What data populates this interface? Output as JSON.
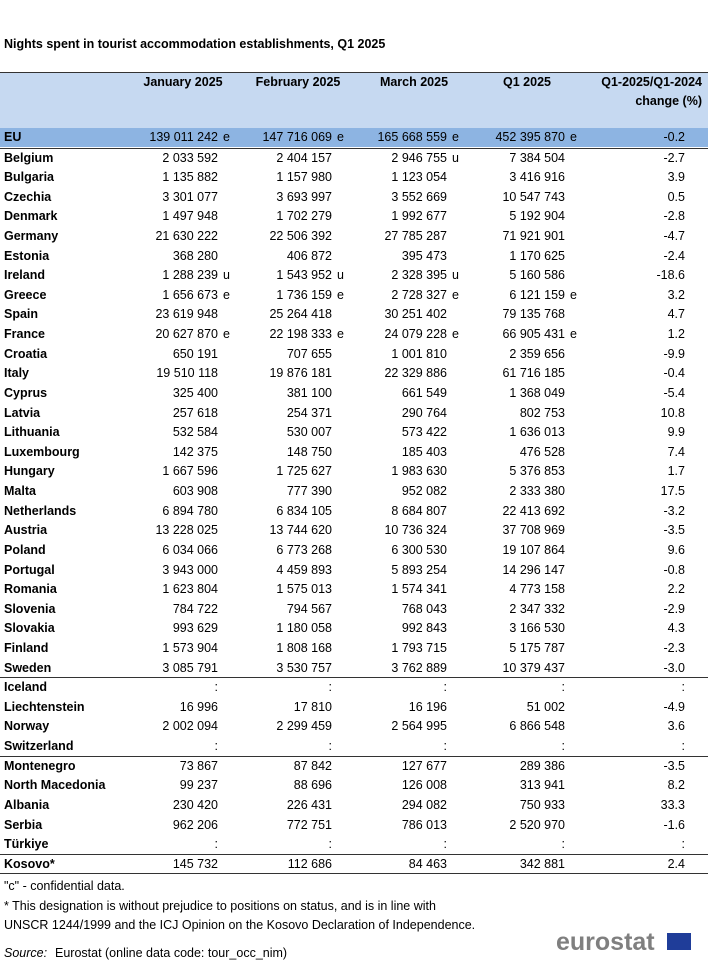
{
  "title": "Nights spent in tourist accommodation establishments, Q1 2025",
  "table": {
    "header": [
      "January 2025",
      "February 2025",
      "March 2025",
      "Q1 2025",
      [
        "Q1-2025/Q1-2024",
        "change  (%)"
      ]
    ],
    "groups": [
      [
        {
          "label": "EU",
          "cells": [
            [
              "139 011 242",
              "e"
            ],
            [
              "147 716 069",
              "e"
            ],
            [
              "165 668 559",
              "e"
            ],
            [
              "452 395 870",
              "e"
            ],
            "-0.2"
          ]
        }
      ],
      [
        {
          "label": "Belgium",
          "cells": [
            "2 033 592",
            "2 404 157",
            [
              "2 946 755",
              "u"
            ],
            "7 384 504",
            "-2.7"
          ]
        },
        {
          "label": "Bulgaria",
          "cells": [
            "1 135 882",
            "1 157 980",
            "1 123 054",
            "3 416 916",
            "3.9"
          ]
        },
        {
          "label": "Czechia",
          "cells": [
            "3 301 077",
            "3 693 997",
            "3 552 669",
            "10 547 743",
            "0.5"
          ]
        },
        {
          "label": "Denmark",
          "cells": [
            "1 497 948",
            "1 702 279",
            "1 992 677",
            "5 192 904",
            "-2.8"
          ]
        },
        {
          "label": "Germany",
          "cells": [
            "21 630 222",
            "22 506 392",
            "27 785 287",
            "71 921 901",
            "-4.7"
          ]
        },
        {
          "label": "Estonia",
          "cells": [
            "368 280",
            "406 872",
            "395 473",
            "1 170 625",
            "-2.4"
          ]
        },
        {
          "label": "Ireland",
          "cells": [
            [
              "1 288 239",
              "u"
            ],
            [
              "1 543 952",
              "u"
            ],
            [
              "2 328 395",
              "u"
            ],
            "5 160 586",
            "-18.6"
          ]
        },
        {
          "label": "Greece",
          "cells": [
            [
              "1 656 673",
              "e"
            ],
            [
              "1 736 159",
              "e"
            ],
            [
              "2 728 327",
              "e"
            ],
            [
              "6 121 159",
              "e"
            ],
            "3.2"
          ]
        },
        {
          "label": "Spain",
          "cells": [
            "23 619 948",
            "25 264 418",
            "30 251 402",
            "79 135 768",
            "4.7"
          ]
        },
        {
          "label": "France",
          "cells": [
            [
              "20 627 870",
              "e"
            ],
            [
              "22 198 333",
              "e"
            ],
            [
              "24 079 228",
              "e"
            ],
            [
              "66 905 431",
              "e"
            ],
            "1.2"
          ]
        },
        {
          "label": "Croatia",
          "cells": [
            "650 191",
            "707 655",
            "1 001 810",
            "2 359 656",
            "-9.9"
          ]
        },
        {
          "label": "Italy",
          "cells": [
            "19 510 118",
            "19 876 181",
            "22 329 886",
            "61 716 185",
            "-0.4"
          ]
        },
        {
          "label": "Cyprus",
          "cells": [
            "325 400",
            "381 100",
            "661 549",
            "1 368 049",
            "-5.4"
          ]
        },
        {
          "label": "Latvia",
          "cells": [
            "257 618",
            "254 371",
            "290 764",
            "802 753",
            "10.8"
          ]
        },
        {
          "label": "Lithuania",
          "cells": [
            "532 584",
            "530 007",
            "573 422",
            "1 636 013",
            "9.9"
          ]
        },
        {
          "label": "Luxembourg",
          "cells": [
            "142 375",
            "148 750",
            "185 403",
            "476 528",
            "7.4"
          ]
        },
        {
          "label": "Hungary",
          "cells": [
            "1 667 596",
            "1 725 627",
            "1 983 630",
            "5 376 853",
            "1.7"
          ]
        },
        {
          "label": "Malta",
          "cells": [
            "603 908",
            "777 390",
            "952 082",
            "2 333 380",
            "17.5"
          ]
        },
        {
          "label": "Netherlands",
          "cells": [
            "6 894 780",
            "6 834 105",
            "8 684 807",
            "22 413 692",
            "-3.2"
          ]
        },
        {
          "label": "Austria",
          "cells": [
            "13 228 025",
            "13 744 620",
            "10 736 324",
            "37 708 969",
            "-3.5"
          ]
        },
        {
          "label": "Poland",
          "cells": [
            "6 034 066",
            "6 773 268",
            "6 300 530",
            "19 107 864",
            "9.6"
          ]
        },
        {
          "label": "Portugal",
          "cells": [
            "3 943 000",
            "4 459 893",
            "5 893 254",
            "14 296 147",
            "-0.8"
          ]
        },
        {
          "label": "Romania",
          "cells": [
            "1 623 804",
            "1 575 013",
            "1 574 341",
            "4 773 158",
            "2.2"
          ]
        },
        {
          "label": "Slovenia",
          "cells": [
            "784 722",
            "794 567",
            "768 043",
            "2 347 332",
            "-2.9"
          ]
        },
        {
          "label": "Slovakia",
          "cells": [
            "993 629",
            "1 180 058",
            "992 843",
            "3 166 530",
            "4.3"
          ]
        },
        {
          "label": "Finland",
          "cells": [
            "1 573 904",
            "1 808 168",
            "1 793 715",
            "5 175 787",
            "-2.3"
          ]
        },
        {
          "label": "Sweden",
          "cells": [
            "3 085 791",
            "3 530 757",
            "3 762 889",
            "10 379 437",
            "-3.0"
          ]
        }
      ],
      [
        {
          "label": "Iceland",
          "cells": [
            ":",
            ":",
            ":",
            ":",
            ":"
          ]
        },
        {
          "label": "Liechtenstein",
          "cells": [
            "16 996",
            "17 810",
            "16 196",
            "51 002",
            "-4.9"
          ]
        },
        {
          "label": "Norway",
          "cells": [
            "2 002 094",
            "2 299 459",
            "2 564 995",
            "6 866 548",
            "3.6"
          ]
        },
        {
          "label": "Switzerland",
          "cells": [
            ":",
            ":",
            ":",
            ":",
            ":"
          ]
        }
      ],
      [
        {
          "label": "Montenegro",
          "cells": [
            "73 867",
            "87 842",
            "127 677",
            "289 386",
            "-3.5"
          ]
        },
        {
          "label": "North Macedonia",
          "cells": [
            "99 237",
            "88 696",
            "126 008",
            "313 941",
            "8.2"
          ]
        },
        {
          "label": "Albania",
          "cells": [
            "230 420",
            "226 431",
            "294 082",
            "750 933",
            "33.3"
          ]
        },
        {
          "label": "Serbia",
          "cells": [
            "962 206",
            "772 751",
            "786 013",
            "2 520 970",
            "-1.6"
          ]
        },
        {
          "label": "Türkiye",
          "cells": [
            ":",
            ":",
            ":",
            ":",
            ":"
          ]
        }
      ],
      [
        {
          "label": "Kosovo*",
          "cells": [
            "145 732",
            "112 686",
            "84 463",
            "342 881",
            "2.4"
          ]
        }
      ]
    ]
  },
  "footnotes": [
    "\"c\" - confidential data.",
    "* This designation is without prejudice to positions on status, and is in line with",
    "UNSCR 1244/1999 and the ICJ Opinion on the Kosovo Declaration of Independence."
  ],
  "source": {
    "label": "Source:",
    "text": "Eurostat (online data code: tour_occ_nim)"
  },
  "logo": "eurostat"
}
